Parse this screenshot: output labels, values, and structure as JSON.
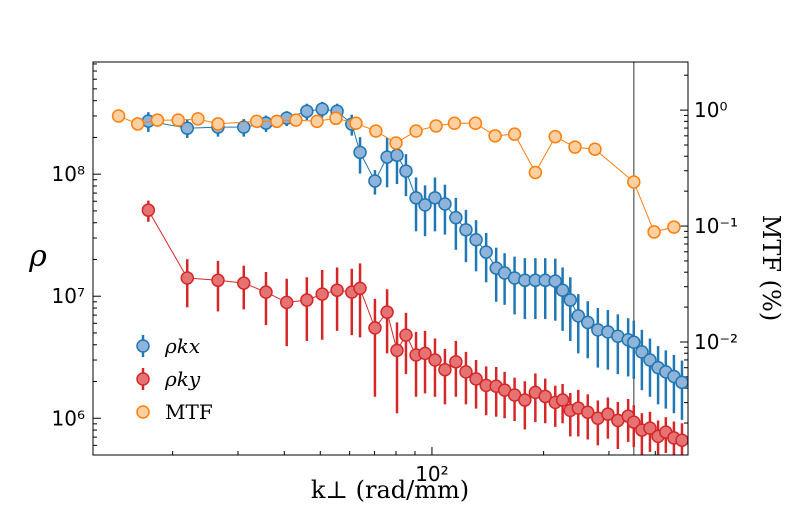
{
  "chart_data": {
    "type": "scatter",
    "xlabel": "k⊥ (rad/mm)",
    "ylabel": "ρ",
    "y2label": "MTF (%)",
    "xscale": "log",
    "yscale": "log",
    "y2scale": "log",
    "xlim": [
      12.2,
      490
    ],
    "ylim": [
      500000,
      830000000
    ],
    "y2lim": [
      0.00106,
      2.6
    ],
    "xticks": [
      {
        "value": 100,
        "label": "10²"
      }
    ],
    "yticks": [
      {
        "value": 1000000,
        "label": "10⁶"
      },
      {
        "value": 10000000,
        "label": "10⁷"
      },
      {
        "value": 100000000,
        "label": "10⁸"
      }
    ],
    "y2ticks": [
      {
        "value": 0.01,
        "label": "10⁻²"
      },
      {
        "value": 0.1,
        "label": "10⁻¹"
      },
      {
        "value": 1,
        "label": "10⁰"
      }
    ],
    "xminor_ticks": [
      20,
      30,
      40,
      50,
      60,
      70,
      80,
      90,
      200,
      300,
      400
    ],
    "yminor_ticks": [
      600000,
      700000,
      800000,
      900000,
      2000000,
      3000000,
      4000000,
      5000000,
      6000000,
      7000000,
      8000000,
      9000000,
      20000000,
      30000000,
      40000000,
      50000000,
      60000000,
      70000000,
      80000000,
      90000000,
      200000000,
      300000000,
      400000000,
      500000000,
      600000000,
      700000000,
      800000000
    ],
    "y2minor_ticks": [
      0.002,
      0.003,
      0.004,
      0.005,
      0.006,
      0.007,
      0.008,
      0.009,
      0.02,
      0.03,
      0.04,
      0.05,
      0.06,
      0.07,
      0.08,
      0.09,
      0.2,
      0.3,
      0.4,
      0.5,
      0.6,
      0.7,
      0.8,
      0.9,
      2
    ],
    "vline": 350,
    "legend": "lower left",
    "series": [
      {
        "name": "ρkx",
        "color": "#1f77b4",
        "fill": "#8fb3d9",
        "x": [
          17.2,
          21.9,
          26.5,
          31.1,
          35.7,
          40.6,
          46.0,
          50.6,
          55.5,
          60.8,
          64.0,
          70.2,
          75.7,
          80.5,
          85.1,
          90.6,
          95.8,
          101.9,
          108.4,
          116,
          123.5,
          131.5,
          140,
          149,
          157,
          167,
          178,
          190,
          202,
          215,
          225,
          236,
          248,
          263,
          280,
          298,
          317,
          338,
          350,
          368,
          387,
          407,
          427,
          449,
          472
        ],
        "values": [
          272000000,
          238000000,
          243000000,
          243000000,
          262000000,
          288000000,
          328000000,
          341000000,
          328000000,
          257000000,
          151000000,
          88000000,
          138000000,
          143000000,
          106000000,
          64000000,
          56000000,
          64000000,
          57000000,
          44000000,
          35000000,
          29000000,
          23000000,
          17000000,
          15500000,
          14100000,
          13500000,
          13500000,
          13500000,
          13300000,
          11200000,
          9300000,
          6900000,
          6100000,
          5300000,
          5100000,
          4700000,
          4400000,
          4200000,
          3500000,
          3000000,
          2600000,
          2400000,
          2200000,
          1970000
        ],
        "errors": [
          50000000,
          40000000,
          40000000,
          40000000,
          40000000,
          40000000,
          50000000,
          50000000,
          50000000,
          50000000,
          50000000,
          20000000,
          60000000,
          60000000,
          40000000,
          30000000,
          25000000,
          30000000,
          25000000,
          20000000,
          16000000,
          13000000,
          10000000,
          8000000,
          7000000,
          7000000,
          7000000,
          7000000,
          7000000,
          7000000,
          6000000,
          5000000,
          3500000,
          3000000,
          2700000,
          2600000,
          2400000,
          2200000,
          2100000,
          1800000,
          1500000,
          1300000,
          1200000,
          1100000,
          1000000
        ]
      },
      {
        "name": "ρky",
        "color": "#d62728",
        "fill": "#e57373",
        "x": [
          17.2,
          21.9,
          26.5,
          31.1,
          35.7,
          40.6,
          46.0,
          50.6,
          55.5,
          60.8,
          64.0,
          70.2,
          75.7,
          80.5,
          85.1,
          90.6,
          95.8,
          101.9,
          108.4,
          116,
          123.5,
          131.5,
          140,
          149,
          157,
          167,
          178,
          190,
          202,
          215,
          225,
          236,
          248,
          263,
          280,
          298,
          317,
          338,
          350,
          368,
          387,
          407,
          427,
          449,
          472
        ],
        "values": [
          50700000,
          14100000,
          13500000,
          12800000,
          10800000,
          8900000,
          9300000,
          10400000,
          11200000,
          10800000,
          11600000,
          5500000,
          7400000,
          3600000,
          4800000,
          3300000,
          3400000,
          3000000,
          2500000,
          2900000,
          2400000,
          2100000,
          1860000,
          1830000,
          1700000,
          1550000,
          1410000,
          1630000,
          1510000,
          1350000,
          1410000,
          1160000,
          1210000,
          1120000,
          1000000,
          1080000,
          960000,
          1040000,
          930000,
          800000,
          830000,
          710000,
          770000,
          690000,
          660000
        ],
        "errors": [
          10000000,
          6000000,
          6000000,
          5000000,
          5000000,
          5000000,
          5000000,
          6000000,
          6000000,
          6000000,
          7000000,
          4000000,
          4000000,
          2500000,
          2500000,
          1800000,
          1800000,
          1500000,
          1200000,
          1400000,
          1100000,
          900000,
          800000,
          800000,
          700000,
          600000,
          600000,
          700000,
          600000,
          500000,
          500000,
          450000,
          500000,
          450000,
          400000,
          400000,
          400000,
          400000,
          350000,
          300000,
          300000,
          250000,
          250000,
          250000,
          250000
        ]
      },
      {
        "name": "MTF",
        "color": "#ff7f0e",
        "fill": "#fdd0a2",
        "axis": "y2",
        "x": [
          14.3,
          16.1,
          18.2,
          20.7,
          23.4,
          26.5,
          33.7,
          38.2,
          43.0,
          49.0,
          55.1,
          62.4,
          70.6,
          80.0,
          90.6,
          102.6,
          115,
          131,
          148,
          167,
          190,
          215,
          243,
          275,
          350,
          397,
          449
        ],
        "values": [
          0.89,
          0.76,
          0.82,
          0.82,
          0.84,
          0.76,
          0.8,
          0.8,
          0.82,
          0.8,
          0.85,
          0.77,
          0.66,
          0.52,
          0.66,
          0.73,
          0.77,
          0.77,
          0.6,
          0.62,
          0.29,
          0.59,
          0.48,
          0.46,
          0.24,
          0.089,
          0.098
        ]
      }
    ]
  }
}
